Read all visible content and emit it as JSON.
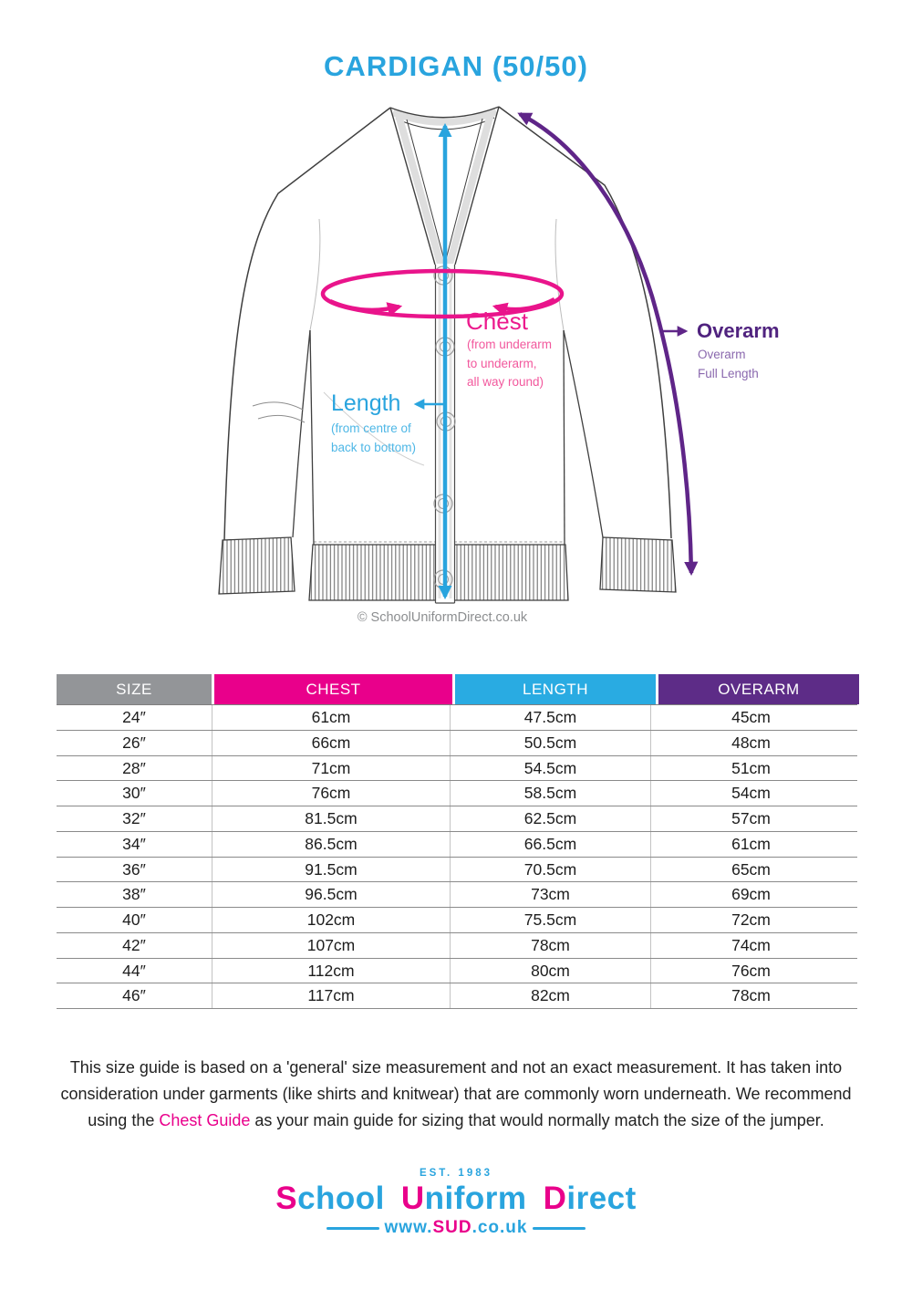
{
  "title": "CARDIGAN (50/50)",
  "diagram": {
    "chest": {
      "label": "Chest",
      "sub1": "(from underarm",
      "sub2": "to underarm,",
      "sub3": "all way round)"
    },
    "length": {
      "label": "Length",
      "sub1": "(from centre of",
      "sub2": "back to bottom)"
    },
    "overarm": {
      "label": "Overarm",
      "sub1": "Overarm",
      "sub2": "Full Length"
    },
    "copyright": "© SchoolUniformDirect.co.uk"
  },
  "table": {
    "headers": [
      {
        "label": "SIZE",
        "color": "#939598"
      },
      {
        "label": "CHEST",
        "color": "#e9008b"
      },
      {
        "label": "LENGTH",
        "color": "#29abe2"
      },
      {
        "label": "OVERARM",
        "color": "#5d2c87"
      }
    ],
    "rows": [
      [
        "24″",
        "61cm",
        "47.5cm",
        "45cm"
      ],
      [
        "26″",
        "66cm",
        "50.5cm",
        "48cm"
      ],
      [
        "28″",
        "71cm",
        "54.5cm",
        "51cm"
      ],
      [
        "30″",
        "76cm",
        "58.5cm",
        "54cm"
      ],
      [
        "32″",
        "81.5cm",
        "62.5cm",
        "57cm"
      ],
      [
        "34″",
        "86.5cm",
        "66.5cm",
        "61cm"
      ],
      [
        "36″",
        "91.5cm",
        "70.5cm",
        "65cm"
      ],
      [
        "38″",
        "96.5cm",
        "73cm",
        "69cm"
      ],
      [
        "40″",
        "102cm",
        "75.5cm",
        "72cm"
      ],
      [
        "42″",
        "107cm",
        "78cm",
        "74cm"
      ],
      [
        "44″",
        "112cm",
        "80cm",
        "76cm"
      ],
      [
        "46″",
        "117cm",
        "82cm",
        "78cm"
      ]
    ]
  },
  "disclaimer": {
    "line1": "This size guide is based on a 'general' size measurement and not an exact measurement. It has taken into",
    "line2": "consideration under garments (like shirts and knitwear) that are commonly worn underneath. We recommend",
    "line3_before": "using the ",
    "line3_highlight": "Chest Guide",
    "line3_after": " as your main guide for sizing that would normally match the size of the jumper."
  },
  "logo": {
    "est": "EST. 1983",
    "word1_initial": "S",
    "word1_rest": "chool",
    "word2_initial": "U",
    "word2_rest": "niform",
    "word3_initial": "D",
    "word3_rest": "irect",
    "url_pre": "www.",
    "url_mid": "SUD",
    "url_post": ".co.uk"
  },
  "colors": {
    "accent_blue": "#29abe2",
    "accent_pink": "#e9008b",
    "accent_purple": "#5d2c87",
    "accent_gray": "#939598"
  }
}
